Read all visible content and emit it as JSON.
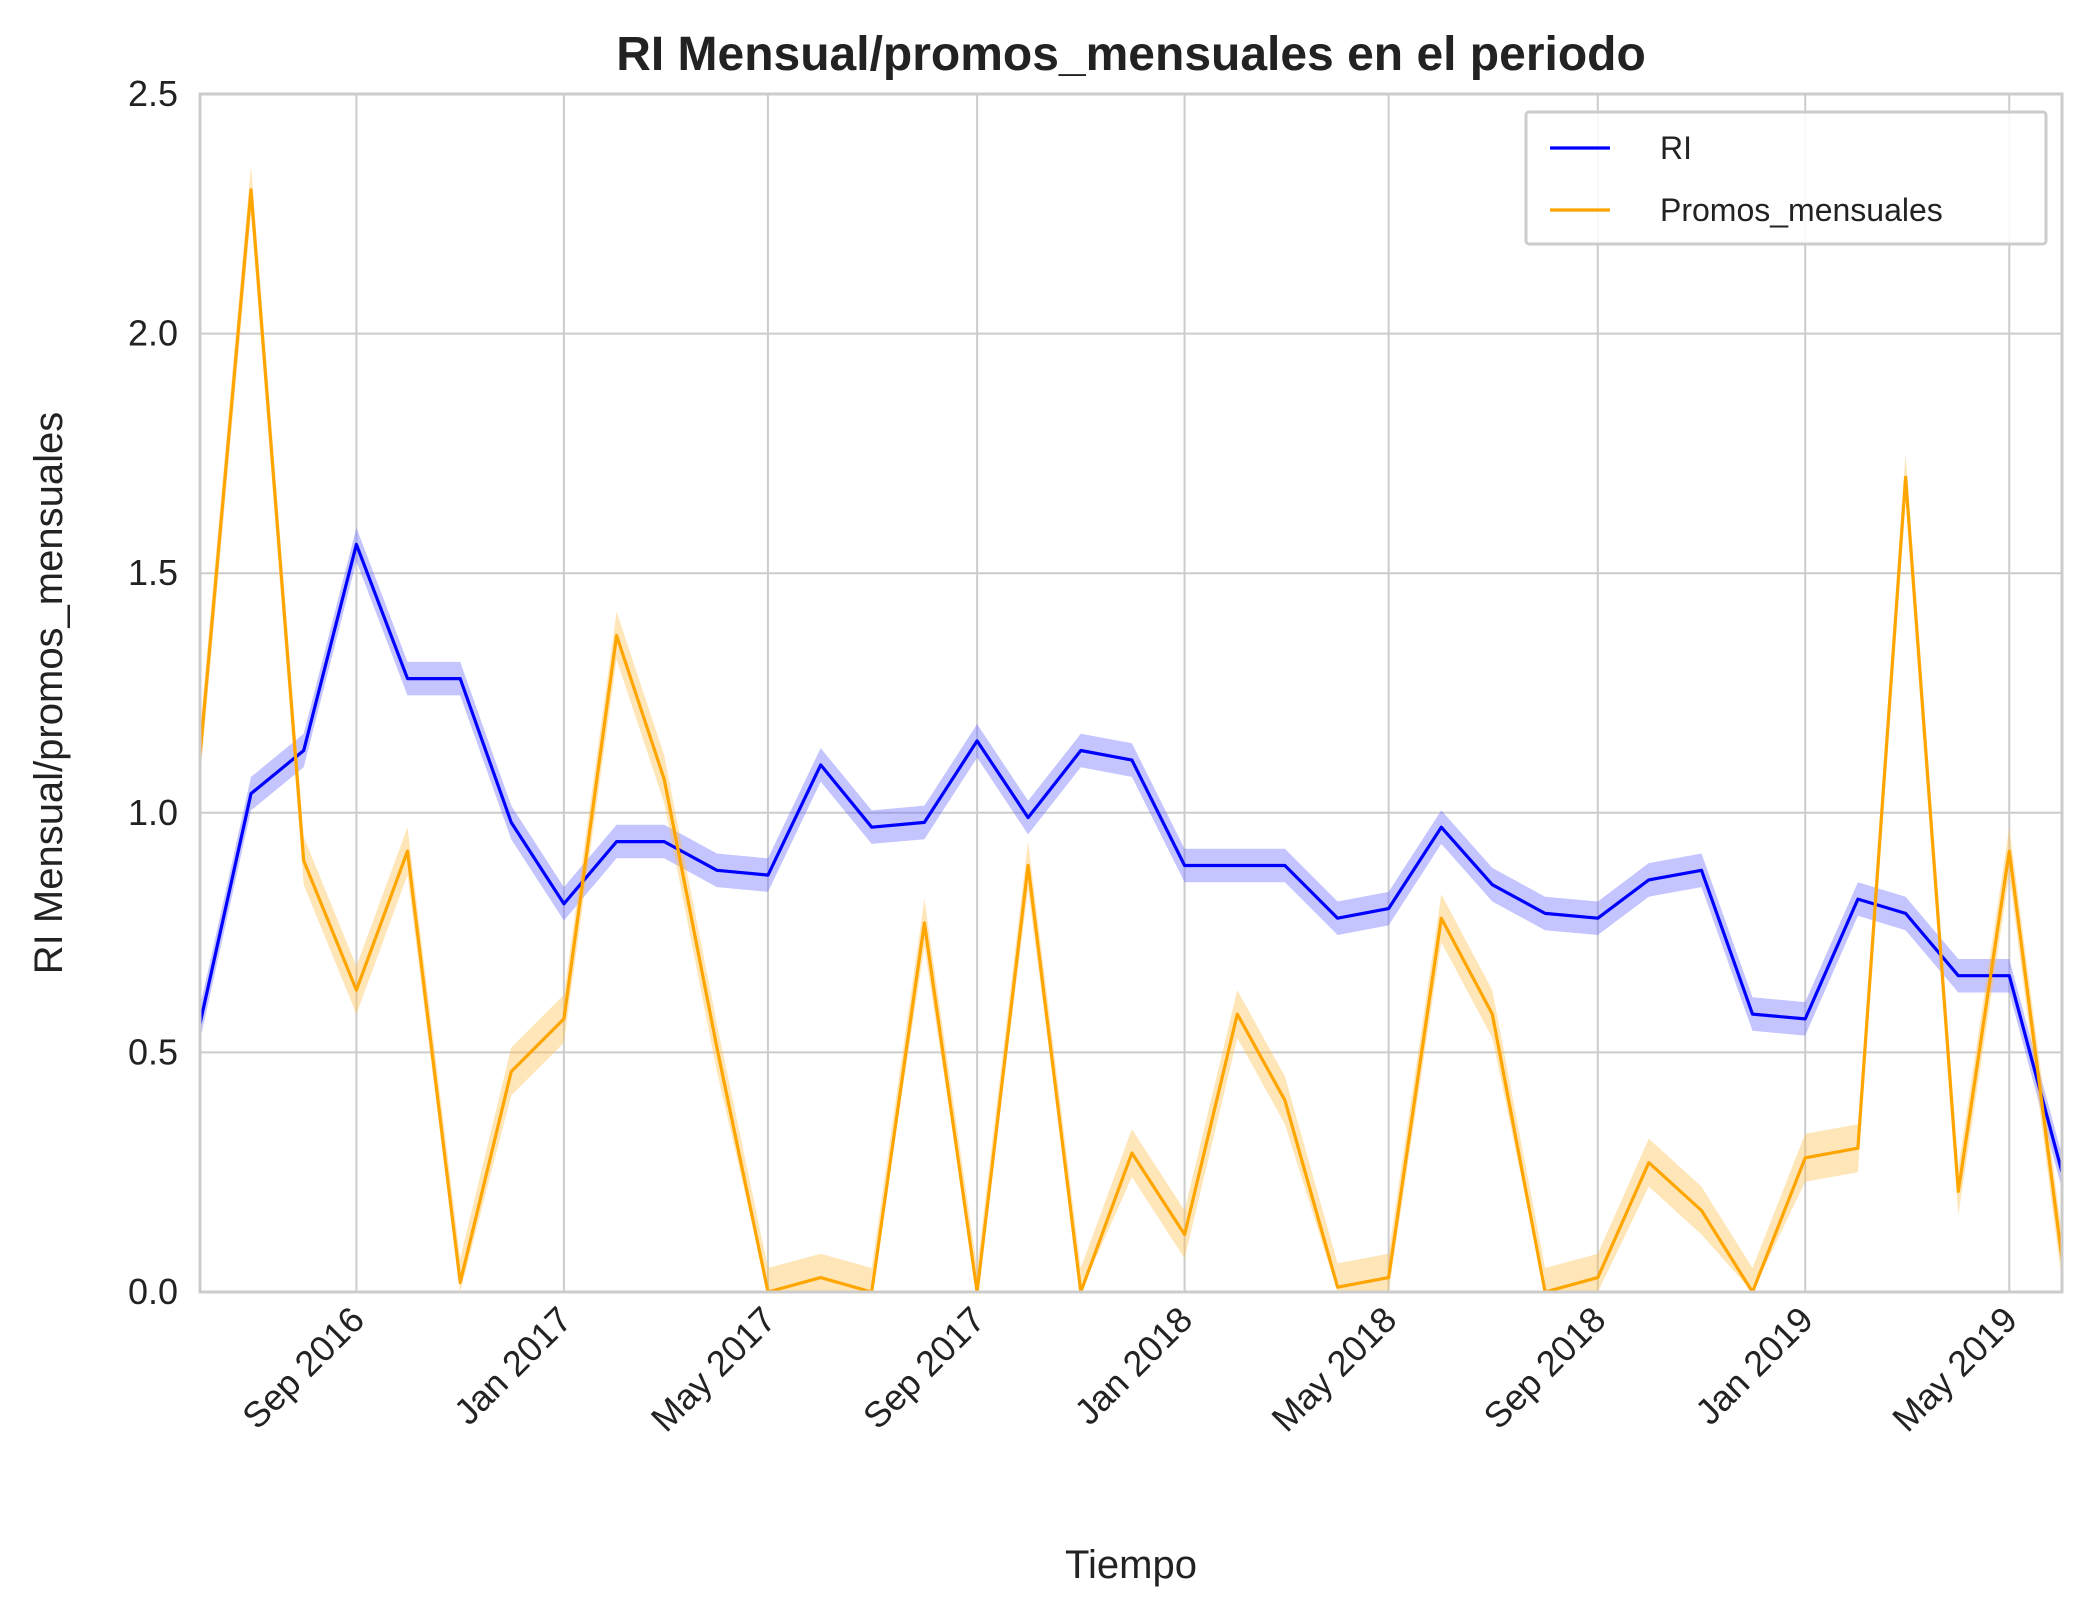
{
  "chart_data": {
    "type": "line",
    "title": "RI Mensual/promos_mensuales en el periodo",
    "xlabel": "Tiempo",
    "ylabel": "RI Mensual/promos_mensuales",
    "ylim": [
      0,
      2.5
    ],
    "xlim": [
      "2016-06-01",
      "2019-06-01"
    ],
    "yticks": [
      "0.0",
      "0.5",
      "1.0",
      "1.5",
      "2.0",
      "2.5"
    ],
    "xticks": [
      {
        "label": "Sep 2016",
        "date": "2016-09-01"
      },
      {
        "label": "Jan 2017",
        "date": "2017-01-01"
      },
      {
        "label": "May 2017",
        "date": "2017-05-01"
      },
      {
        "label": "Sep 2017",
        "date": "2017-09-01"
      },
      {
        "label": "Jan 2018",
        "date": "2018-01-01"
      },
      {
        "label": "May 2018",
        "date": "2018-05-01"
      },
      {
        "label": "Sep 2018",
        "date": "2018-09-01"
      },
      {
        "label": "Jan 2019",
        "date": "2019-01-01"
      },
      {
        "label": "May 2019",
        "date": "2019-05-01"
      }
    ],
    "grid": true,
    "legend": "top-right",
    "x": [
      "2016-06-01",
      "2016-07-01",
      "2016-08-01",
      "2016-09-01",
      "2016-10-01",
      "2016-11-01",
      "2016-12-01",
      "2017-01-01",
      "2017-02-01",
      "2017-03-01",
      "2017-04-01",
      "2017-05-01",
      "2017-06-01",
      "2017-07-01",
      "2017-08-01",
      "2017-09-01",
      "2017-10-01",
      "2017-11-01",
      "2017-12-01",
      "2018-01-01",
      "2018-02-01",
      "2018-03-01",
      "2018-04-01",
      "2018-05-01",
      "2018-06-01",
      "2018-07-01",
      "2018-08-01",
      "2018-09-01",
      "2018-10-01",
      "2018-11-01",
      "2018-12-01",
      "2019-01-01",
      "2019-02-01",
      "2019-03-01",
      "2019-04-01",
      "2019-05-01",
      "2019-06-01"
    ],
    "series": [
      {
        "name": "RI",
        "color": "#0000ff",
        "band_color": "#6b6bff",
        "band_width": 0.035,
        "values": [
          0.56,
          1.04,
          1.13,
          1.56,
          1.28,
          1.28,
          0.98,
          0.81,
          0.94,
          0.94,
          0.88,
          0.87,
          1.1,
          0.97,
          0.98,
          1.15,
          0.99,
          1.13,
          1.11,
          0.89,
          0.89,
          0.89,
          0.78,
          0.8,
          0.97,
          0.85,
          0.79,
          0.78,
          0.86,
          0.88,
          0.58,
          0.57,
          0.82,
          0.79,
          0.66,
          0.66,
          0.25
        ]
      },
      {
        "name": "Promos_mensuales",
        "color": "#ffa500",
        "band_color": "#ffc04d",
        "band_width": 0.05,
        "values": [
          1.12,
          2.3,
          0.9,
          0.63,
          0.92,
          0.02,
          0.46,
          0.57,
          1.37,
          1.07,
          0.51,
          0.0,
          0.03,
          0.0,
          0.77,
          0.0,
          0.89,
          0.0,
          0.29,
          0.12,
          0.58,
          0.4,
          0.01,
          0.03,
          0.78,
          0.58,
          0.0,
          0.03,
          0.27,
          0.17,
          0.0,
          0.28,
          0.3,
          1.7,
          0.21,
          0.92,
          0.07
        ]
      }
    ]
  }
}
